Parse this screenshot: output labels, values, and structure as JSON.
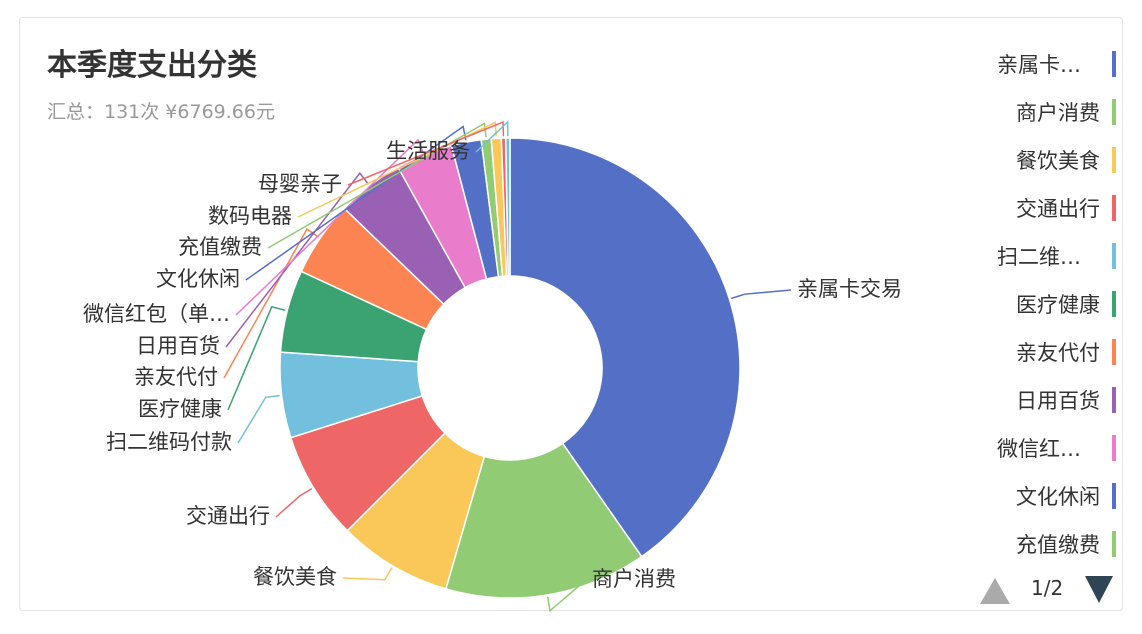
{
  "title": "本季度支出分类",
  "subtitle": "汇总：131次 ¥6769.66元",
  "pager": "1/2",
  "chart_data": {
    "type": "pie",
    "categories": [
      "亲属卡交易",
      "商户消费",
      "餐饮美食",
      "交通出行",
      "扫二维码付款",
      "医疗健康",
      "亲友代付",
      "日用百货",
      "微信红包（单…",
      "文化休闲",
      "充值缴费",
      "数码电器",
      "母婴亲子",
      "生活服务"
    ],
    "values": [
      40.3,
      14.2,
      8,
      7.6,
      6,
      5.8,
      5.3,
      4.7,
      4,
      2.1,
      0.7,
      0.7,
      0.3,
      0.3
    ],
    "colors": [
      "#5470c6",
      "#91cc75",
      "#fac858",
      "#ee6666",
      "#73c0de",
      "#3ba272",
      "#fc8452",
      "#9a60b4",
      "#ea7ccc",
      "#5470c6",
      "#91cc75",
      "#fac858",
      "#ee6666",
      "#73c0de"
    ]
  }
}
